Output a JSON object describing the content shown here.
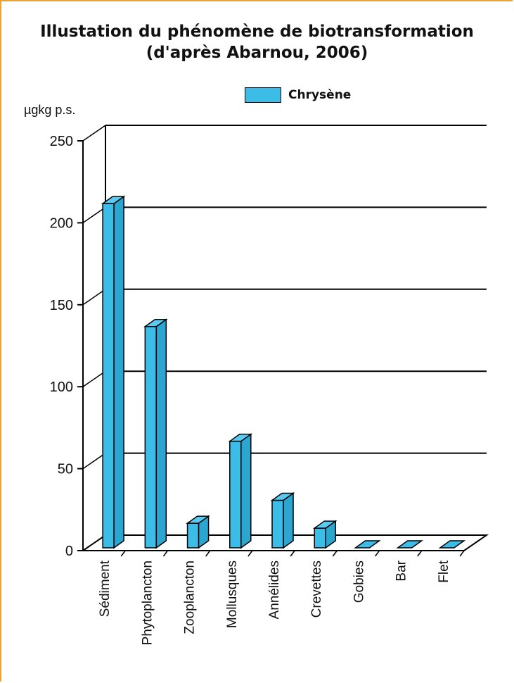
{
  "chart_data": {
    "type": "bar",
    "title": "Illustation du phénomène de biotransformation",
    "subtitle": "(d'après Abarnou, 2006)",
    "ylabel": "µgkg p.s.",
    "xlabel": "",
    "ylim": [
      0,
      250
    ],
    "yticks": [
      0,
      50,
      100,
      150,
      200,
      250
    ],
    "grid": true,
    "legend_position": "top-right",
    "categories": [
      "Sédiment",
      "Phytoplancton",
      "Zooplancton",
      "Mollusques",
      "Annélides",
      "Crevettes",
      "Gobies",
      "Bar",
      "Flet"
    ],
    "series": [
      {
        "name": "Chrysène",
        "color": "#3bbde8",
        "values": [
          210,
          135,
          15,
          65,
          29,
          12,
          0,
          0,
          0
        ]
      }
    ]
  }
}
